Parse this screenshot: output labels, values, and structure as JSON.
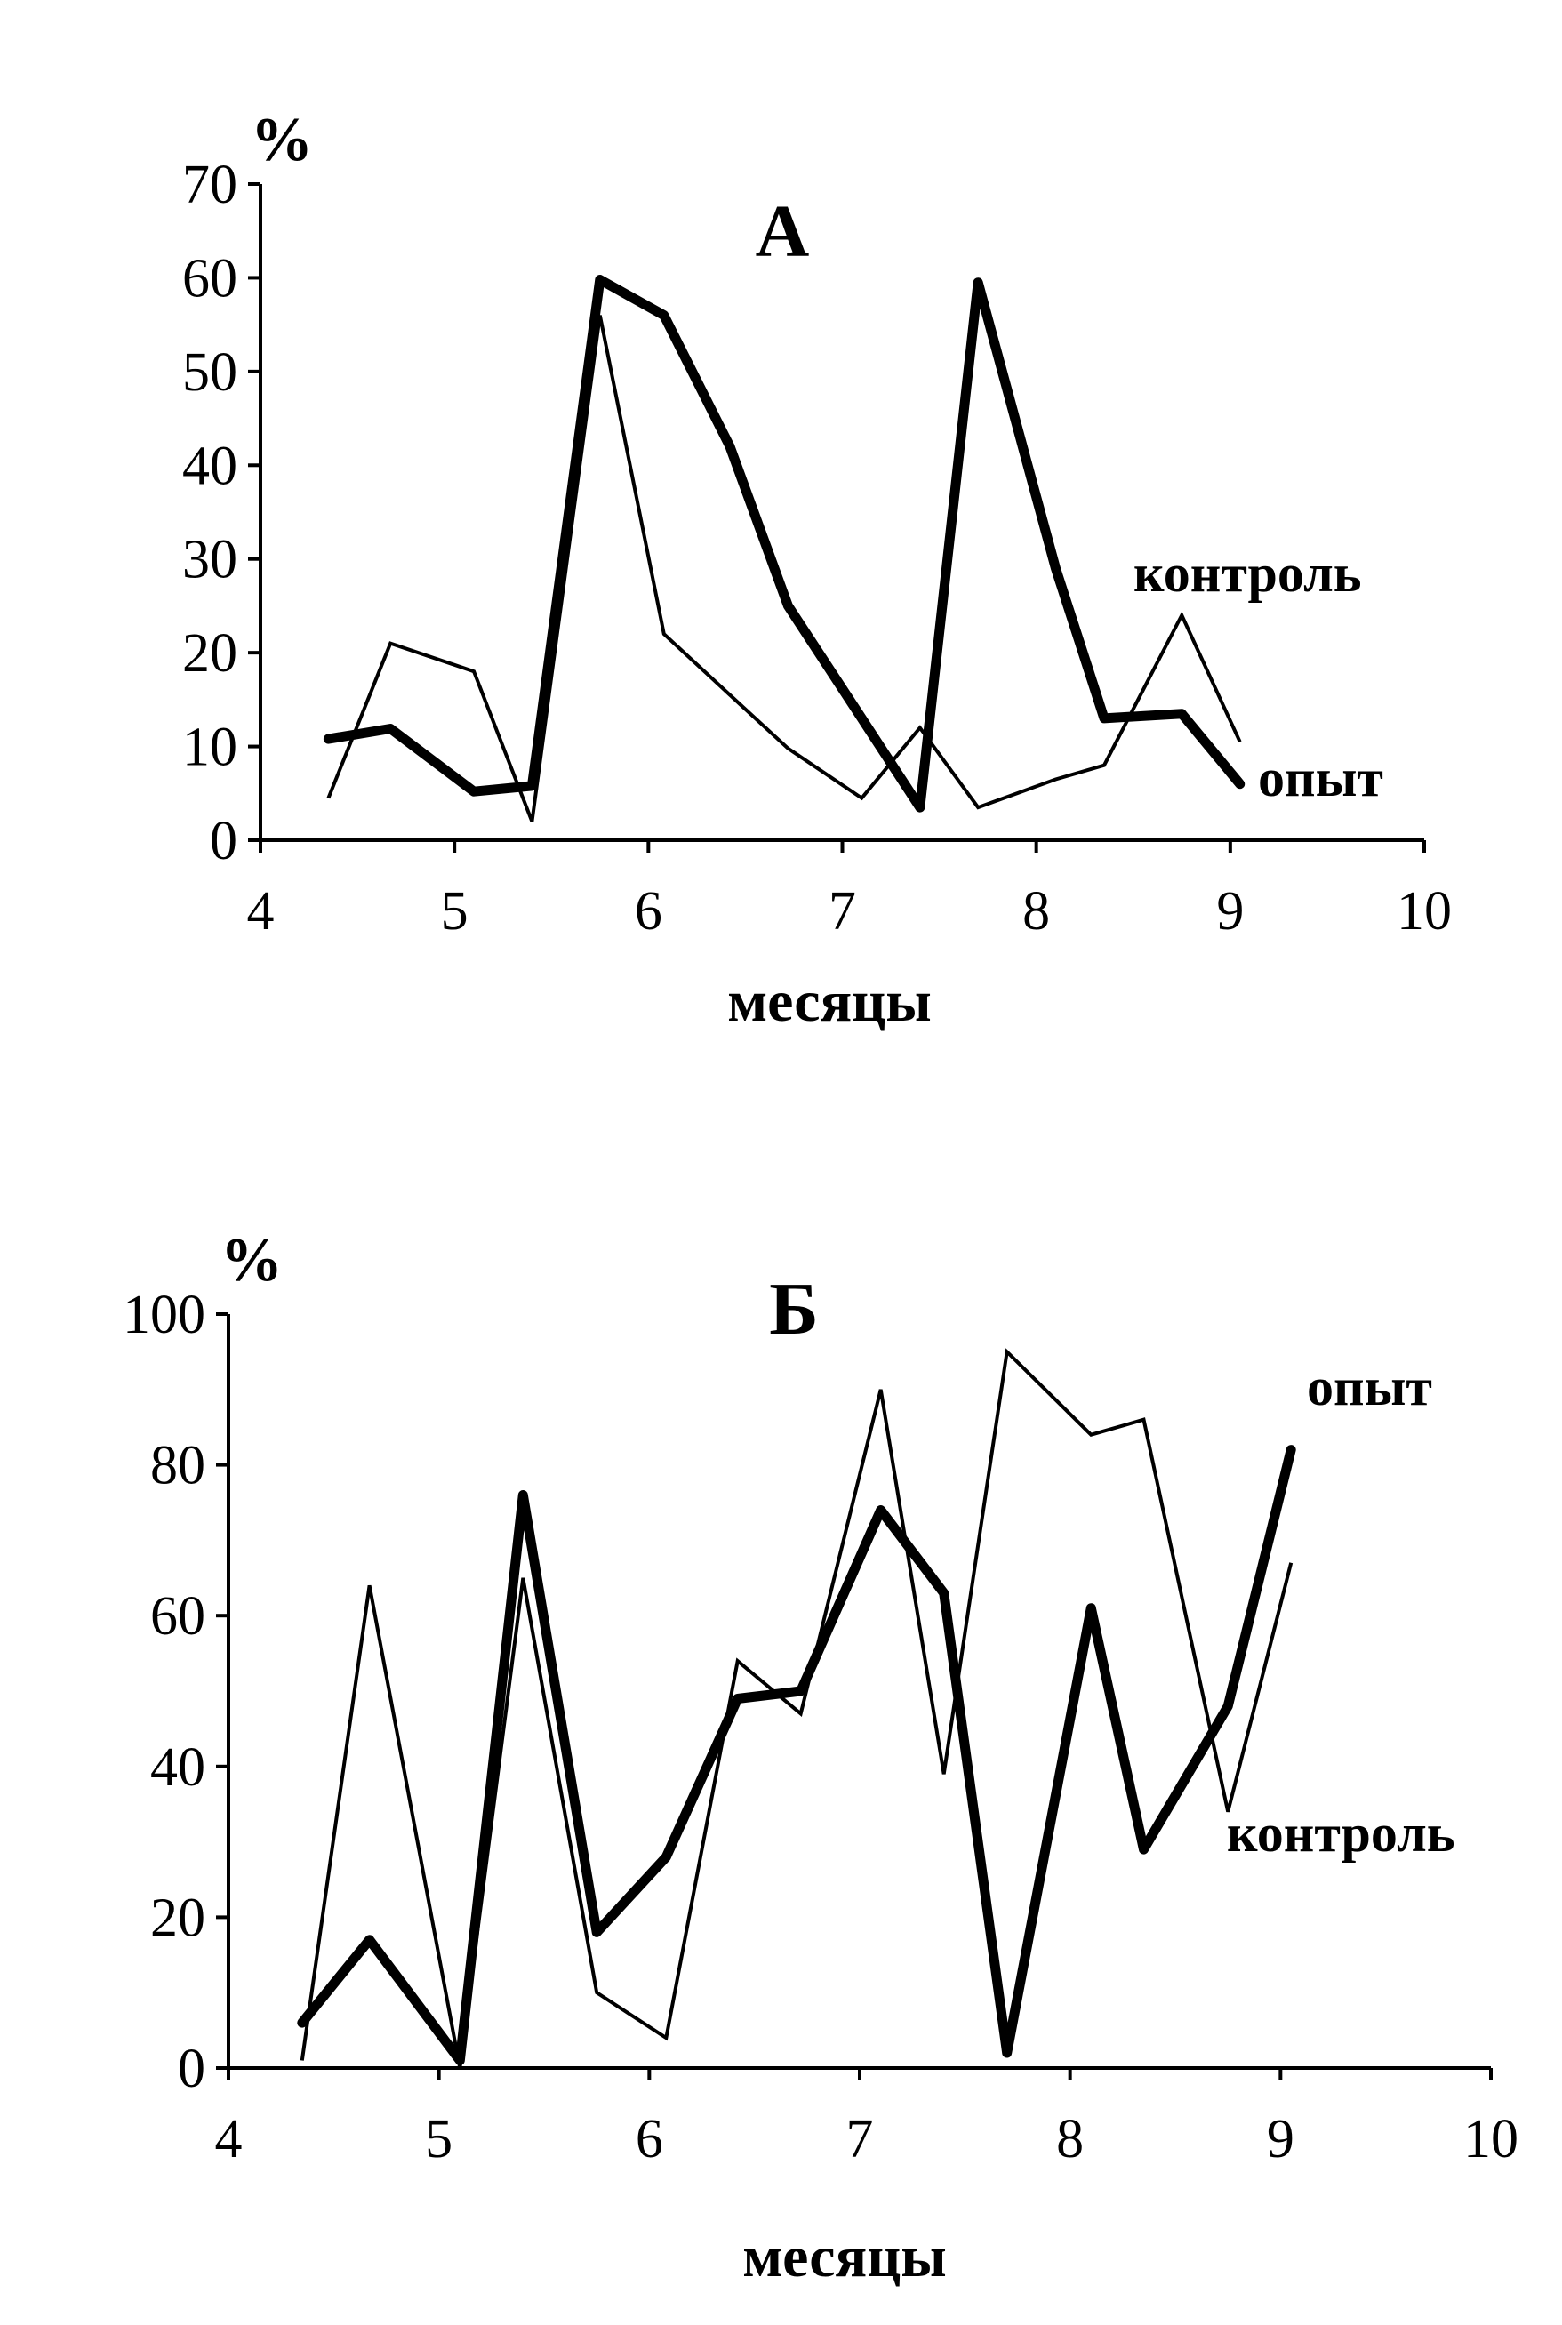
{
  "chart_data": [
    {
      "type": "line",
      "title": "А",
      "ylabel": "%",
      "xlabel": "месяцы",
      "xlim": [
        4,
        10
      ],
      "ylim": [
        0,
        70
      ],
      "xticks": [
        "4",
        "5",
        "6",
        "7",
        "8",
        "9",
        "10"
      ],
      "yticks": [
        "0",
        "10",
        "20",
        "30",
        "40",
        "50",
        "60",
        "70"
      ],
      "grid": false,
      "series": [
        {
          "name": "опыт",
          "style": "thick",
          "x": [
            4.35,
            4.67,
            5.1,
            5.4,
            5.75,
            6.08,
            6.42,
            6.72,
            7.1,
            7.4,
            7.7,
            8.1,
            8.35,
            8.75,
            9.05
          ],
          "y": [
            10.8,
            11.9,
            5.2,
            5.8,
            59.8,
            56,
            42,
            25,
            13,
            3.5,
            59.5,
            29,
            13,
            13.5,
            6
          ]
        },
        {
          "name": "контроль",
          "style": "thin",
          "x": [
            4.35,
            4.67,
            5.1,
            5.4,
            5.75,
            6.08,
            6.42,
            6.72,
            7.1,
            7.4,
            7.7,
            8.1,
            8.35,
            8.75,
            9.05
          ],
          "y": [
            4.5,
            21,
            18,
            2,
            56,
            22,
            15.5,
            9.8,
            4.5,
            12,
            3.5,
            6.5,
            8,
            24,
            10.5
          ]
        }
      ]
    },
    {
      "type": "line",
      "title": "Б",
      "ylabel": "%",
      "xlabel": "месяцы",
      "xlim": [
        4,
        10
      ],
      "ylim": [
        0,
        100
      ],
      "xticks": [
        "4",
        "5",
        "6",
        "7",
        "8",
        "9",
        "10"
      ],
      "yticks": [
        "0",
        "20",
        "40",
        "60",
        "80",
        "100"
      ],
      "grid": false,
      "series": [
        {
          "name": "опыт",
          "style": "thick",
          "x": [
            4.35,
            4.67,
            5.1,
            5.4,
            5.75,
            6.08,
            6.42,
            6.72,
            7.1,
            7.4,
            7.7,
            8.1,
            8.35,
            8.75,
            9.05
          ],
          "y": [
            6,
            17,
            1,
            76,
            18,
            28,
            49,
            50,
            74,
            63,
            2,
            61,
            29,
            48,
            82
          ]
        },
        {
          "name": "контроль",
          "style": "thin",
          "x": [
            4.35,
            4.67,
            5.1,
            5.4,
            5.75,
            6.08,
            6.42,
            6.72,
            7.1,
            7.4,
            7.7,
            8.1,
            8.35,
            8.75,
            9.05
          ],
          "y": [
            1,
            64,
            0,
            65,
            10,
            4,
            54,
            47,
            90,
            39,
            95,
            84,
            86,
            34,
            67
          ]
        }
      ]
    }
  ]
}
